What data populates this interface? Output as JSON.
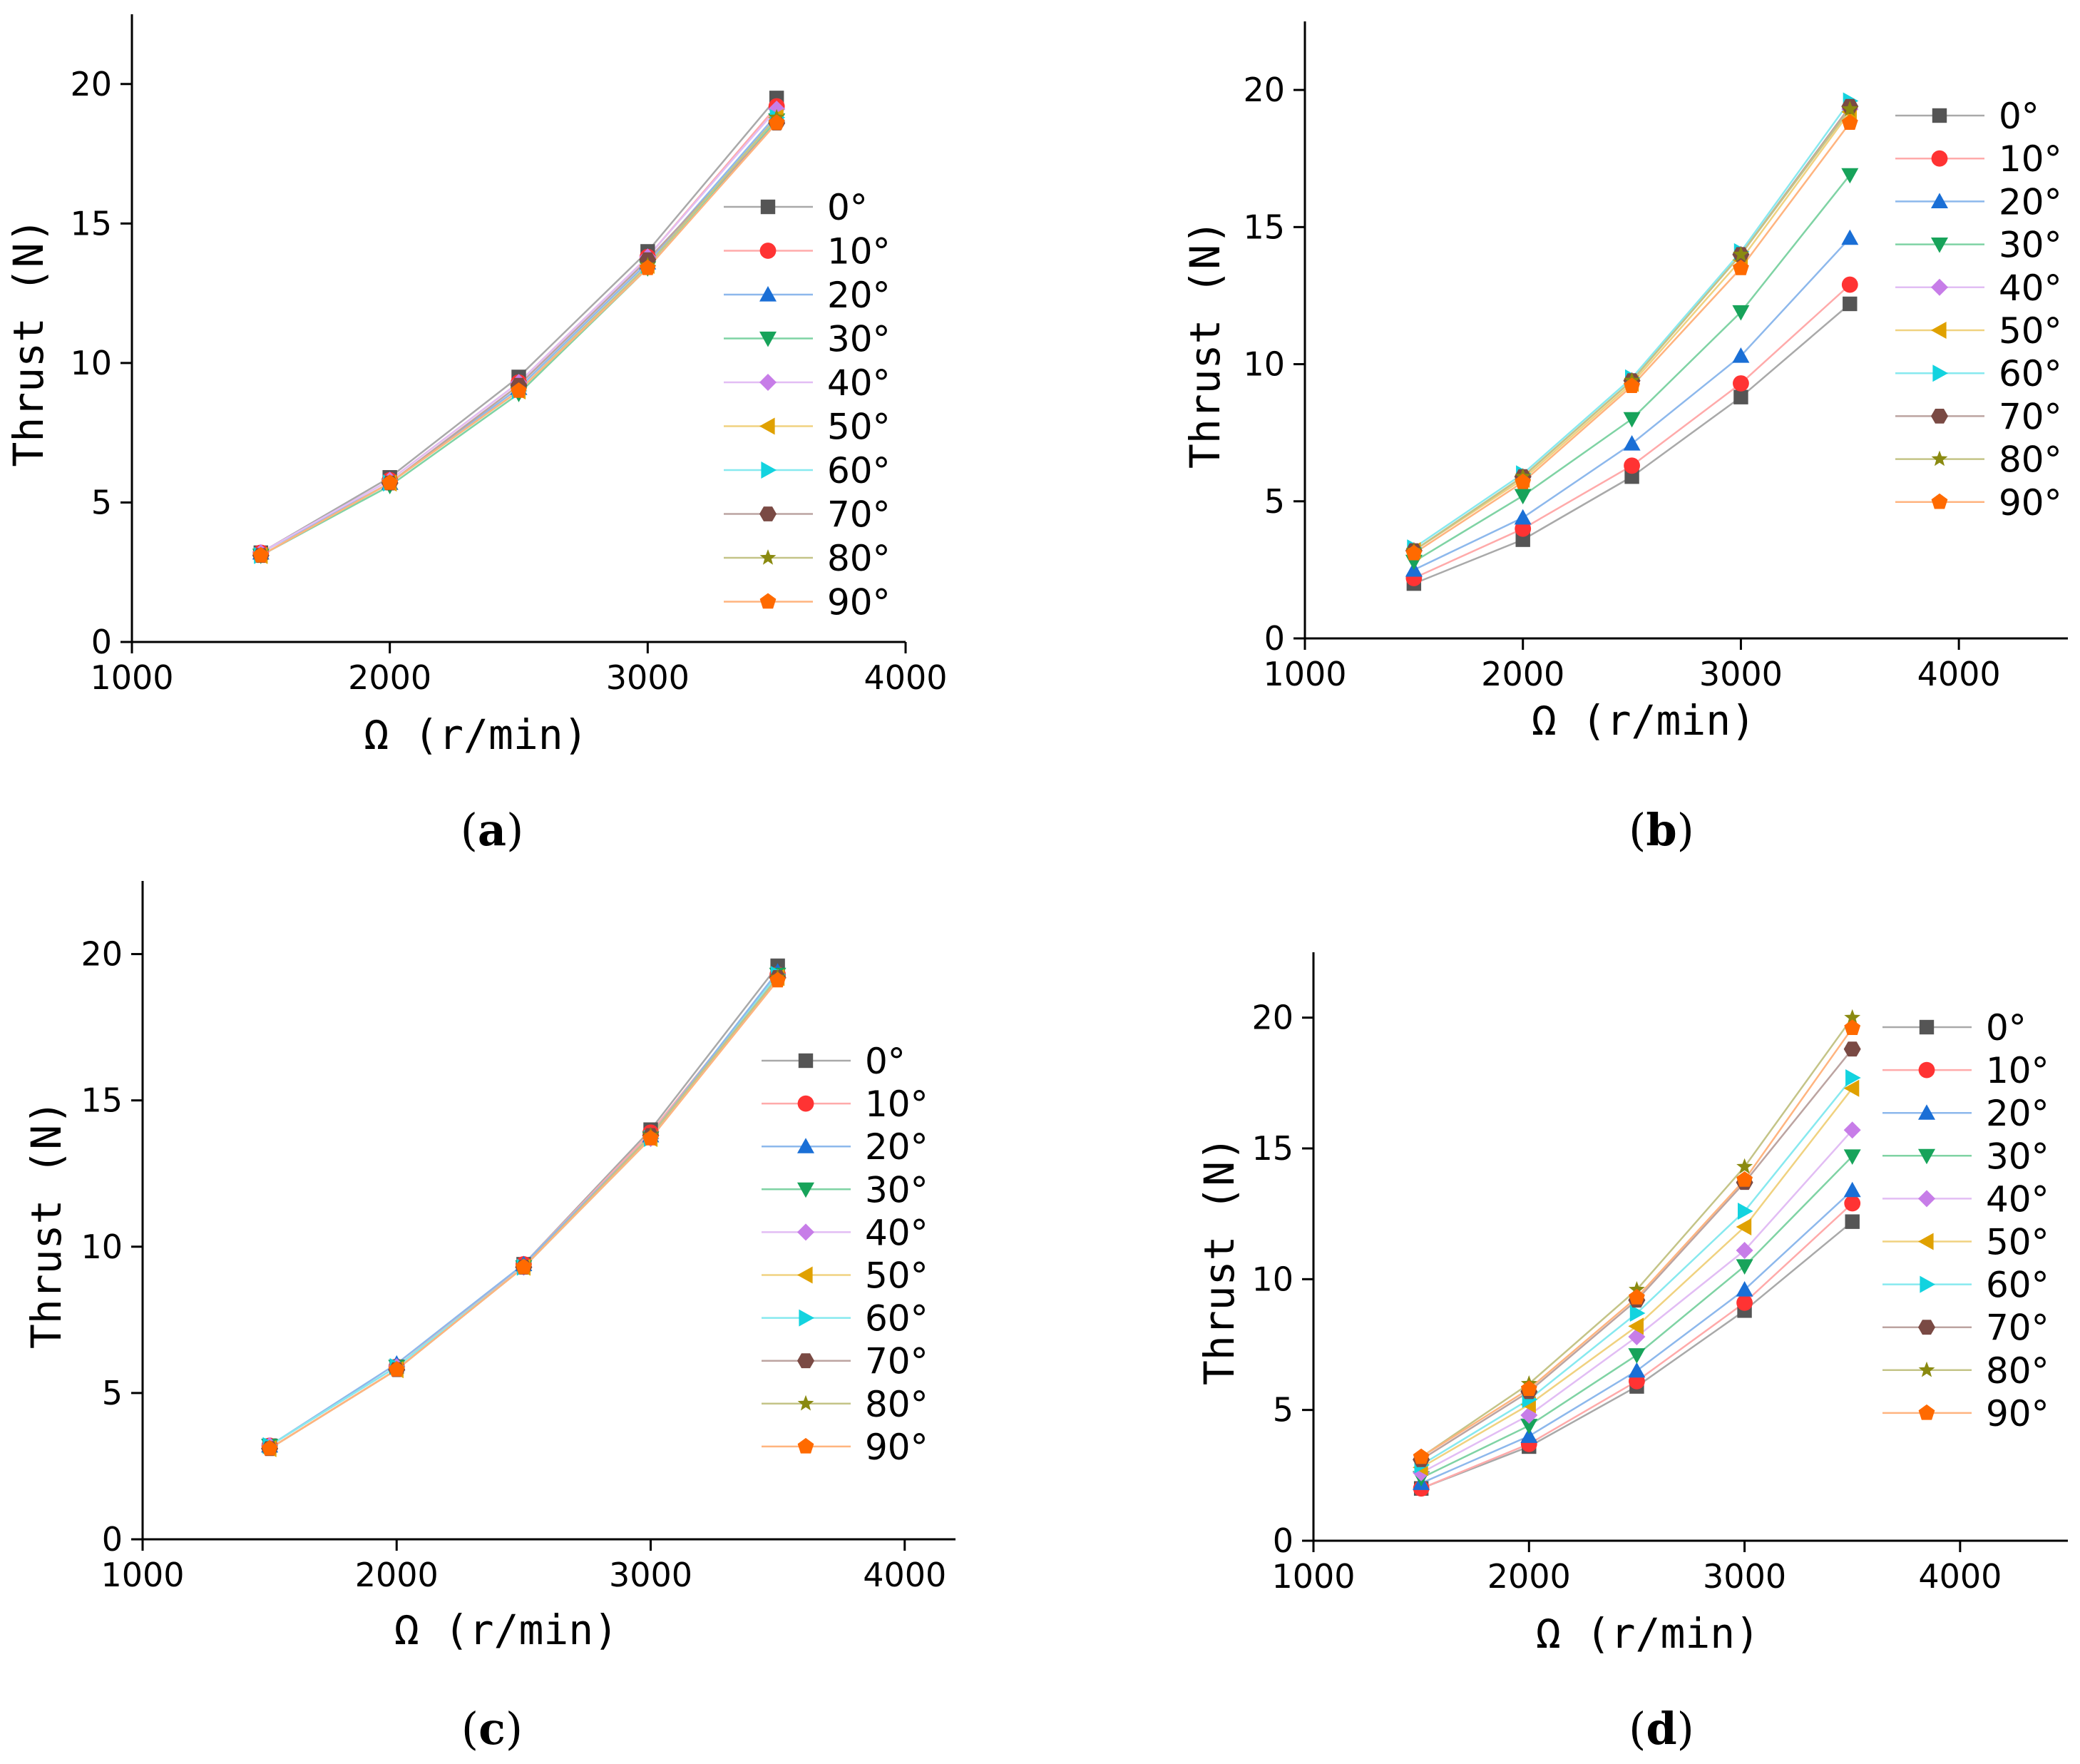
{
  "chart_data": [
    {
      "panel": "a",
      "type": "line",
      "caption_open": "(",
      "caption_letter": "a",
      "caption_close": ")",
      "xlabel": "Ω (r/min)",
      "ylabel": "Thrust (N)",
      "xlim": [
        1000,
        4000
      ],
      "ylim": [
        0,
        22.5
      ],
      "xticks": [
        1000,
        2000,
        3000,
        4000
      ],
      "yticks": [
        0,
        5,
        10,
        15,
        20
      ],
      "legend_position": "right",
      "x": [
        1500,
        2000,
        2500,
        3000,
        3500
      ],
      "series": [
        {
          "name": "0°",
          "values": [
            3.2,
            5.9,
            9.5,
            14.0,
            19.5
          ]
        },
        {
          "name": "10°",
          "values": [
            3.2,
            5.8,
            9.3,
            13.8,
            19.2
          ]
        },
        {
          "name": "20°",
          "values": [
            3.2,
            5.7,
            9.1,
            13.6,
            18.9
          ]
        },
        {
          "name": "30°",
          "values": [
            3.1,
            5.6,
            8.9,
            13.4,
            18.7
          ]
        },
        {
          "name": "40°",
          "values": [
            3.2,
            5.8,
            9.3,
            13.8,
            19.1
          ]
        },
        {
          "name": "50°",
          "values": [
            3.1,
            5.7,
            9.0,
            13.5,
            18.8
          ]
        },
        {
          "name": "60°",
          "values": [
            3.1,
            5.7,
            9.0,
            13.5,
            18.8
          ]
        },
        {
          "name": "70°",
          "values": [
            3.1,
            5.7,
            9.2,
            13.7,
            18.6
          ]
        },
        {
          "name": "80°",
          "values": [
            3.1,
            5.7,
            9.0,
            13.5,
            18.8
          ]
        },
        {
          "name": "90°",
          "values": [
            3.1,
            5.7,
            9.0,
            13.4,
            18.6
          ]
        }
      ]
    },
    {
      "panel": "b",
      "type": "line",
      "caption_open": "(",
      "caption_letter": "b",
      "caption_close": ")",
      "xlabel": "Ω (r/min)",
      "ylabel": "Thrust (N)",
      "xlim": [
        1000,
        4500
      ],
      "ylim": [
        0,
        22.5
      ],
      "xticks": [
        1000,
        2000,
        3000,
        4000
      ],
      "yticks": [
        0,
        5,
        10,
        15,
        20
      ],
      "legend_position": "top-right",
      "x": [
        1500,
        2000,
        2500,
        3000,
        3500
      ],
      "series": [
        {
          "name": "0°",
          "values": [
            2.0,
            3.6,
            5.9,
            8.8,
            12.2
          ]
        },
        {
          "name": "10°",
          "values": [
            2.2,
            4.0,
            6.3,
            9.3,
            12.9
          ]
        },
        {
          "name": "20°",
          "values": [
            2.5,
            4.4,
            7.1,
            10.3,
            14.6
          ]
        },
        {
          "name": "30°",
          "values": [
            2.8,
            5.2,
            8.0,
            11.9,
            16.9
          ]
        },
        {
          "name": "40°",
          "values": [
            3.2,
            5.9,
            9.4,
            14.0,
            19.3
          ]
        },
        {
          "name": "50°",
          "values": [
            3.2,
            5.8,
            9.3,
            13.8,
            19.2
          ]
        },
        {
          "name": "60°",
          "values": [
            3.3,
            6.0,
            9.5,
            14.1,
            19.6
          ]
        },
        {
          "name": "70°",
          "values": [
            3.2,
            5.9,
            9.4,
            14.0,
            19.4
          ]
        },
        {
          "name": "80°",
          "values": [
            3.2,
            5.9,
            9.4,
            14.0,
            19.3
          ]
        },
        {
          "name": "90°",
          "values": [
            3.1,
            5.7,
            9.2,
            13.5,
            18.8
          ]
        }
      ]
    },
    {
      "panel": "c",
      "type": "line",
      "caption_open": "(",
      "caption_letter": "c",
      "caption_close": ")",
      "xlabel": "Ω (r/min)",
      "ylabel": "Thrust (N)",
      "xlim": [
        1000,
        4200
      ],
      "ylim": [
        0,
        22.5
      ],
      "xticks": [
        1000,
        2000,
        3000,
        4000
      ],
      "yticks": [
        0,
        5,
        10,
        15,
        20
      ],
      "legend_position": "right",
      "x": [
        1500,
        2000,
        2500,
        3000,
        3500
      ],
      "series": [
        {
          "name": "0°",
          "values": [
            3.2,
            5.9,
            9.4,
            14.0,
            19.6
          ]
        },
        {
          "name": "10°",
          "values": [
            3.2,
            5.9,
            9.4,
            13.9,
            19.3
          ]
        },
        {
          "name": "20°",
          "values": [
            3.2,
            6.0,
            9.4,
            13.8,
            19.4
          ]
        },
        {
          "name": "30°",
          "values": [
            3.2,
            5.9,
            9.3,
            13.7,
            19.3
          ]
        },
        {
          "name": "40°",
          "values": [
            3.2,
            5.9,
            9.3,
            13.7,
            19.2
          ]
        },
        {
          "name": "50°",
          "values": [
            3.1,
            5.8,
            9.3,
            13.7,
            19.2
          ]
        },
        {
          "name": "60°",
          "values": [
            3.2,
            5.9,
            9.3,
            13.7,
            19.3
          ]
        },
        {
          "name": "70°",
          "values": [
            3.1,
            5.8,
            9.3,
            13.8,
            19.2
          ]
        },
        {
          "name": "80°",
          "values": [
            3.1,
            5.8,
            9.3,
            13.8,
            19.2
          ]
        },
        {
          "name": "90°",
          "values": [
            3.1,
            5.8,
            9.3,
            13.7,
            19.1
          ]
        }
      ]
    },
    {
      "panel": "d",
      "type": "line",
      "caption_open": "(",
      "caption_letter": "d",
      "caption_close": ")",
      "xlabel": "Ω (r/min)",
      "ylabel": "Thrust (N)",
      "xlim": [
        1000,
        4500
      ],
      "ylim": [
        0,
        22.5
      ],
      "xticks": [
        1000,
        2000,
        3000,
        4000
      ],
      "yticks": [
        0,
        5,
        10,
        15,
        20
      ],
      "legend_position": "top-right",
      "x": [
        1500,
        2000,
        2500,
        3000,
        3500
      ],
      "series": [
        {
          "name": "0°",
          "values": [
            2.0,
            3.6,
            5.9,
            8.8,
            12.2
          ]
        },
        {
          "name": "10°",
          "values": [
            2.0,
            3.7,
            6.1,
            9.1,
            12.9
          ]
        },
        {
          "name": "20°",
          "values": [
            2.2,
            4.0,
            6.5,
            9.6,
            13.4
          ]
        },
        {
          "name": "30°",
          "values": [
            2.4,
            4.4,
            7.1,
            10.5,
            14.7
          ]
        },
        {
          "name": "40°",
          "values": [
            2.6,
            4.8,
            7.8,
            11.1,
            15.7
          ]
        },
        {
          "name": "50°",
          "values": [
            2.8,
            5.2,
            8.2,
            12.0,
            17.3
          ]
        },
        {
          "name": "60°",
          "values": [
            2.9,
            5.4,
            8.7,
            12.6,
            17.7
          ]
        },
        {
          "name": "70°",
          "values": [
            3.1,
            5.7,
            9.2,
            13.7,
            18.8
          ]
        },
        {
          "name": "80°",
          "values": [
            3.2,
            6.0,
            9.6,
            14.3,
            20.0
          ]
        },
        {
          "name": "90°",
          "values": [
            3.2,
            5.8,
            9.3,
            13.8,
            19.6
          ]
        }
      ]
    }
  ],
  "series_style": [
    {
      "color": "#555555",
      "line_color": "#a9a9a9",
      "marker": "square"
    },
    {
      "color": "#ff3333",
      "line_color": "#ffaaaa",
      "marker": "circle"
    },
    {
      "color": "#1a6fd6",
      "line_color": "#8db8ec",
      "marker": "triangle-up"
    },
    {
      "color": "#17a35a",
      "line_color": "#7fd3a4",
      "marker": "triangle-down"
    },
    {
      "color": "#c77de8",
      "line_color": "#e2bdf4",
      "marker": "diamond"
    },
    {
      "color": "#e0a100",
      "line_color": "#f0d280",
      "marker": "triangle-left"
    },
    {
      "color": "#13d3df",
      "line_color": "#87e9ef",
      "marker": "triangle-right"
    },
    {
      "color": "#7a4a44",
      "line_color": "#bca4a1",
      "marker": "hexagon"
    },
    {
      "color": "#8a8a10",
      "line_color": "#c4c487",
      "marker": "star"
    },
    {
      "color": "#ff6a00",
      "line_color": "#ffb47f",
      "marker": "pentagon"
    }
  ]
}
